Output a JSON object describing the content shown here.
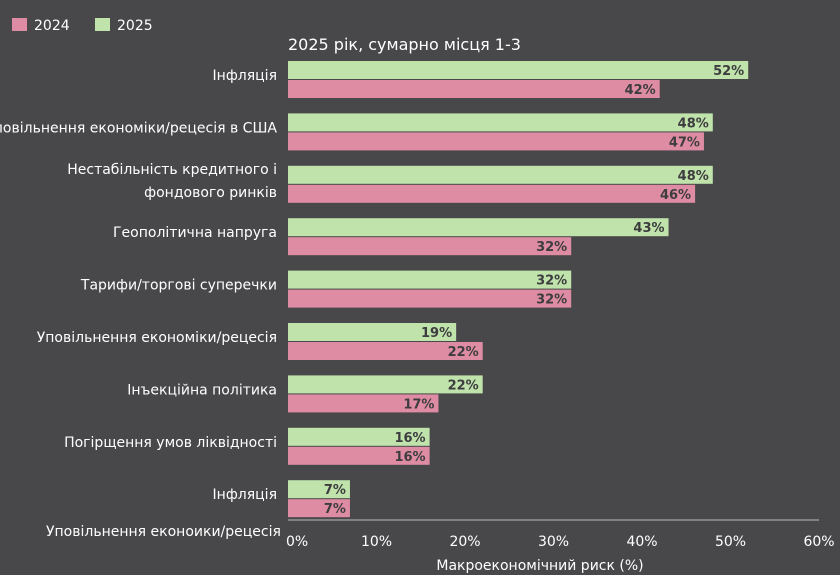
{
  "colors": {
    "background": "#48484a",
    "series_2024": "#de8ca3",
    "series_2025": "#bfe3ab",
    "value_text": "#3d3d3f",
    "text": "#ffffff"
  },
  "chart_data": {
    "type": "bar",
    "orientation": "horizontal",
    "title": "2025 рік, сумарно місця 1-3",
    "xlabel": "Макроекономічний риск (%)",
    "ylabel": "",
    "xlim": [
      0,
      60
    ],
    "xticks": [
      0,
      10,
      20,
      30,
      40,
      50,
      60
    ],
    "xtick_labels": [
      "0%",
      "10%",
      "20%",
      "30%",
      "40%",
      "50%",
      "60%"
    ],
    "legend": [
      "2024",
      "2025"
    ],
    "legend_position": "top-left",
    "categories": [
      [
        "Інфляція"
      ],
      [
        "Уповільнення економіки/рецесія в США"
      ],
      [
        "Нестабільність   кредитного і",
        "фондового ринків"
      ],
      [
        "Геополітична напруга"
      ],
      [
        "Тарифи/торгові суперечки"
      ],
      [
        "Уповільнення економіки/рецесія"
      ],
      [
        "Інъекційна політика"
      ],
      [
        "Погірщення умов ліквідності"
      ],
      [
        "Інфляція"
      ]
    ],
    "series": [
      {
        "name": "2025",
        "values": [
          52,
          48,
          48,
          43,
          32,
          19,
          22,
          16,
          7
        ],
        "labels": [
          "52%",
          "48%",
          "48%",
          "43%",
          "32%",
          "19%",
          "22%",
          "16%",
          "7%"
        ]
      },
      {
        "name": "2024",
        "values": [
          42,
          47,
          46,
          32,
          32,
          22,
          17,
          16,
          7
        ],
        "labels": [
          "42%",
          "47%",
          "46%",
          "32%",
          "32%",
          "22%",
          "17%",
          "16%",
          "7%"
        ]
      }
    ],
    "extra_category_label": "Уповільнення еконоики/рецесія"
  }
}
